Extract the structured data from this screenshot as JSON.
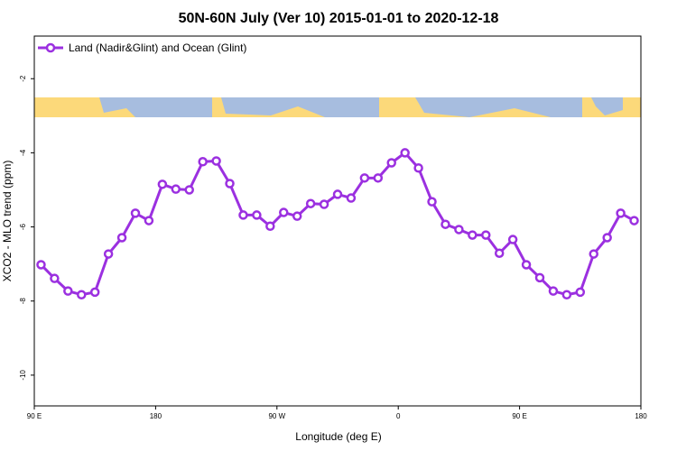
{
  "chart_data": {
    "type": "line",
    "title": "50N-60N July (Ver 10)   2015-01-01 to 2020-12-18",
    "x_label": "Longitude (deg E)",
    "y_label": "XCO2 - MLO trend (ppm)",
    "x": [
      95,
      105,
      115,
      125,
      135,
      145,
      155,
      165,
      175,
      185,
      195,
      205,
      215,
      225,
      235,
      245,
      255,
      265,
      275,
      285,
      295,
      305,
      315,
      325,
      335,
      345,
      355,
      365,
      375,
      385,
      395,
      405,
      415,
      425,
      435,
      445,
      455,
      465,
      475,
      485,
      495,
      505,
      515,
      525,
      535
    ],
    "series": [
      {
        "name": "Land (Nadir&Glint) and Ocean (Glint)",
        "color": "#9b30e0",
        "values": [
          -7.02,
          -7.39,
          -7.73,
          -7.83,
          -7.76,
          -6.73,
          -6.29,
          -5.63,
          -5.83,
          -4.85,
          -4.98,
          -5.0,
          -4.24,
          -4.22,
          -4.83,
          -5.68,
          -5.68,
          -5.98,
          -5.61,
          -5.71,
          -5.37,
          -5.39,
          -5.12,
          -5.22,
          -4.68,
          -4.68,
          -4.27,
          -4.0,
          -4.41,
          -5.32,
          -5.93,
          -6.07,
          -6.22,
          -6.22,
          -6.71,
          -6.34,
          -7.02,
          -7.37,
          -7.73,
          -7.83,
          -7.76,
          -6.73,
          -6.29,
          -5.63,
          -5.83
        ]
      }
    ],
    "xlim": [
      90,
      540
    ],
    "xticks": [
      {
        "value": 90,
        "label": "90 E"
      },
      180,
      {
        "value": 270,
        "label": "90 W"
      },
      {
        "value": 360,
        "label": "0"
      },
      {
        "value": 450,
        "label": "90 E"
      },
      {
        "value": 540,
        "label": "180"
      }
    ],
    "ylim": [
      -10.83,
      -0.85
    ],
    "yticks": [
      -2,
      -4,
      -6,
      -8,
      -10
    ],
    "legend": "top-left"
  }
}
